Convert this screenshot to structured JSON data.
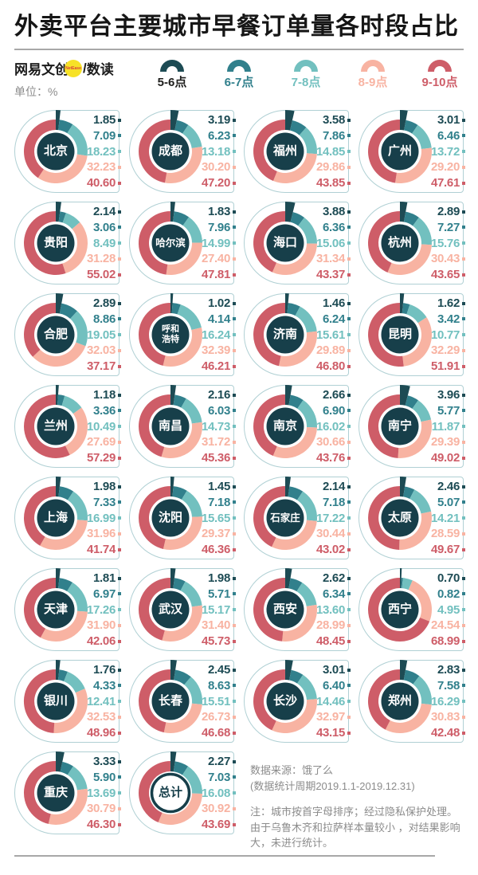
{
  "title": "外卖平台主要城市早餐订单量各时段占比",
  "brand": {
    "name": "网易文创",
    "badge": "NetEase",
    "divider": "/",
    "sub_brand": "数读",
    "unit_label": "单位：%"
  },
  "colors": {
    "slot_colors": [
      "#1d4b54",
      "#31808c",
      "#72c0bf",
      "#f8b3a2",
      "#ce5d68"
    ],
    "legend_label_colors": [
      "#1f1f1d",
      "#31808c",
      "#72c0bf",
      "#f8b3a2",
      "#ce5d68"
    ],
    "center_circle": "#173f4a",
    "cell_outline": "#b0d0d4",
    "badge_yellow": "#f7e227",
    "badge_text": "#d8413c"
  },
  "legend": [
    {
      "label": "5-6点"
    },
    {
      "label": "6-7点"
    },
    {
      "label": "7-8点"
    },
    {
      "label": "8-9点"
    },
    {
      "label": "9-10点"
    }
  ],
  "chart_data": {
    "type": "pie",
    "subtype": "donut-small-multiples",
    "title": "外卖平台主要城市早餐订单量各时段占比",
    "unit": "%",
    "categories": [
      "5-6点",
      "6-7点",
      "7-8点",
      "8-9点",
      "9-10点"
    ],
    "series": [
      {
        "name": "北京",
        "values": [
          1.85,
          7.09,
          18.23,
          32.23,
          40.6
        ]
      },
      {
        "name": "成都",
        "values": [
          3.19,
          6.23,
          13.18,
          30.2,
          47.2
        ]
      },
      {
        "name": "福州",
        "values": [
          3.58,
          7.86,
          14.85,
          29.86,
          43.85
        ]
      },
      {
        "name": "广州",
        "values": [
          3.01,
          6.46,
          13.72,
          29.2,
          47.61
        ]
      },
      {
        "name": "贵阳",
        "values": [
          2.14,
          3.06,
          8.49,
          31.28,
          55.02
        ]
      },
      {
        "name": "哈尔滨",
        "values": [
          1.83,
          7.96,
          14.99,
          27.4,
          47.81
        ]
      },
      {
        "name": "海口",
        "values": [
          3.88,
          6.36,
          15.06,
          31.34,
          43.37
        ]
      },
      {
        "name": "杭州",
        "values": [
          2.89,
          7.27,
          15.76,
          30.43,
          43.65
        ]
      },
      {
        "name": "合肥",
        "values": [
          2.89,
          8.86,
          19.05,
          32.03,
          37.17
        ]
      },
      {
        "name": "呼和浩特",
        "values": [
          1.02,
          4.14,
          16.24,
          32.39,
          46.21
        ]
      },
      {
        "name": "济南",
        "values": [
          1.46,
          6.24,
          15.61,
          29.89,
          46.8
        ]
      },
      {
        "name": "昆明",
        "values": [
          1.62,
          3.42,
          10.77,
          32.29,
          51.91
        ]
      },
      {
        "name": "兰州",
        "values": [
          1.18,
          3.36,
          10.49,
          27.69,
          57.29
        ]
      },
      {
        "name": "南昌",
        "values": [
          2.16,
          6.03,
          14.73,
          31.72,
          45.36
        ]
      },
      {
        "name": "南京",
        "values": [
          2.66,
          6.9,
          16.02,
          30.66,
          43.76
        ]
      },
      {
        "name": "南宁",
        "values": [
          3.96,
          5.77,
          11.87,
          29.39,
          49.02
        ]
      },
      {
        "name": "上海",
        "values": [
          1.98,
          7.33,
          16.99,
          31.96,
          41.74
        ]
      },
      {
        "name": "沈阳",
        "values": [
          1.45,
          7.18,
          15.65,
          29.37,
          46.36
        ]
      },
      {
        "name": "石家庄",
        "values": [
          2.14,
          7.18,
          17.22,
          30.44,
          43.02
        ]
      },
      {
        "name": "太原",
        "values": [
          2.46,
          5.07,
          14.21,
          28.59,
          49.67
        ]
      },
      {
        "name": "天津",
        "values": [
          1.81,
          6.97,
          17.26,
          31.9,
          42.06
        ]
      },
      {
        "name": "武汉",
        "values": [
          1.98,
          5.71,
          15.17,
          31.4,
          45.73
        ]
      },
      {
        "name": "西安",
        "values": [
          2.62,
          6.34,
          13.6,
          28.99,
          48.45
        ]
      },
      {
        "name": "西宁",
        "values": [
          0.7,
          0.82,
          4.95,
          24.54,
          68.99
        ]
      },
      {
        "name": "银川",
        "values": [
          1.76,
          4.33,
          12.41,
          32.53,
          48.96
        ]
      },
      {
        "name": "长春",
        "values": [
          2.45,
          8.63,
          15.51,
          26.73,
          46.68
        ]
      },
      {
        "name": "长沙",
        "values": [
          3.01,
          6.4,
          14.46,
          32.97,
          43.15
        ]
      },
      {
        "name": "郑州",
        "values": [
          2.83,
          7.58,
          16.29,
          30.83,
          42.48
        ]
      },
      {
        "name": "重庆",
        "values": [
          3.33,
          5.9,
          13.69,
          30.79,
          46.3
        ]
      },
      {
        "name": "总计",
        "values": [
          2.27,
          7.03,
          16.08,
          30.92,
          43.69
        ],
        "is_total": true
      }
    ]
  },
  "notes": {
    "source": "数据来源：饿了么",
    "period": "(数据统计周期2019.1.1-2019.12.31)",
    "remark": "注：城市按首字母排序；经过隐私保护处理。由于乌鲁木齐和拉萨样本量较小 ，对结果影响大，未进行统计。"
  }
}
